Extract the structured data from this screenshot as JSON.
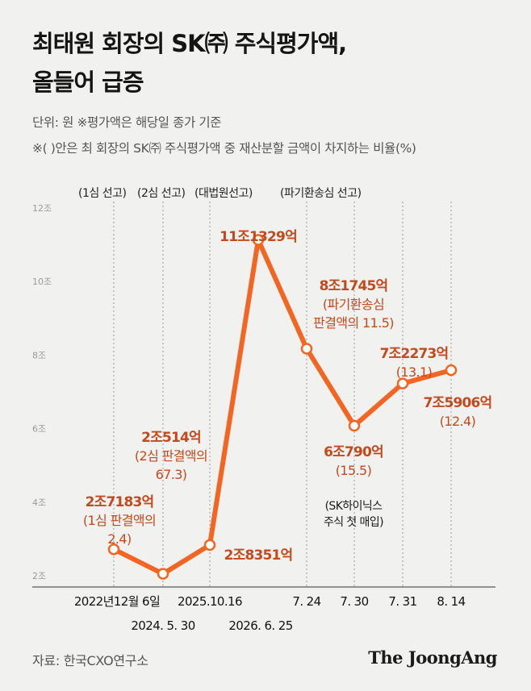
{
  "header": {
    "title_line1": "최태원 회장의 SK㈜ 주식평가액,",
    "title_line2": "올들어 급증",
    "unit_note": "단위: 원  ※평가액은 해당일 종가 기준",
    "ratio_note": "※( )안은 최 회장의 SK㈜ 주식평가액 중 재산분할 금액이 차지하는 비율(%)"
  },
  "chart_data": {
    "type": "line",
    "title": "",
    "xlabel": "",
    "ylabel": "",
    "ylim": [
      2,
      12
    ],
    "y_ticks": [
      "2조",
      "4조",
      "6조",
      "8조",
      "10조",
      "12조"
    ],
    "y_tick_values": [
      2,
      4,
      6,
      8,
      10,
      12
    ],
    "grid": "vertical dashed lines at events",
    "x_labels_row1": [
      "2022년12월 6일",
      "2025.10.16",
      "7. 24",
      "7. 30",
      "7. 31",
      "8. 14"
    ],
    "x_labels_row2": [
      "2024. 5. 30",
      "2026. 6. 25"
    ],
    "x": [
      "2022-12-06",
      "2024-05-30",
      "2025-10-16",
      "2026-06-25",
      "7. 24",
      "7. 30",
      "7. 31",
      "8. 14"
    ],
    "series": [
      {
        "values": [
          2.7183,
          2.0514,
          2.8351,
          11.1329,
          8.1745,
          6.079,
          7.2273,
          7.5906
        ],
        "color": "#f26522"
      }
    ],
    "events": [
      {
        "label": "(1심 선고)",
        "point": 0
      },
      {
        "label": "(2심 선고)",
        "point": 1
      },
      {
        "label": "(대법원선고)",
        "point": 2
      },
      {
        "label": "(파기환송심 선고)",
        "point": 4
      }
    ],
    "point_labels": [
      {
        "value": "2조7183억",
        "sub": [
          "(1심 판결액의",
          "2.4)"
        ]
      },
      {
        "value": "2조514억",
        "sub": [
          "(2심 판결액의",
          "67.3)"
        ]
      },
      {
        "value": "2조8351억",
        "sub": []
      },
      {
        "value": "11조1329억",
        "sub": []
      },
      {
        "value": "8조1745억",
        "sub": [
          "(파기환송심",
          "판결액의 11.5)"
        ]
      },
      {
        "value": "6조790억",
        "sub": [
          "(15.5)"
        ],
        "note": [
          "(SK하이닉스",
          "주식 첫 매입)"
        ]
      },
      {
        "value": "7조2273억",
        "sub": [
          "(13.1)"
        ]
      },
      {
        "value": "7조5906억",
        "sub": [
          "(12.4)"
        ]
      }
    ],
    "accent_color": "#f26522",
    "label_color": "#c24a1d"
  },
  "footer": {
    "source": "자료: 한국CXO연구소",
    "logo": "The JoongAng"
  }
}
